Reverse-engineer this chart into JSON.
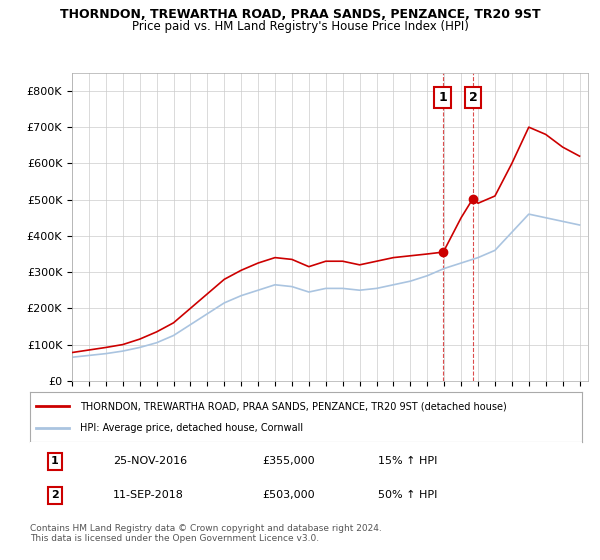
{
  "title1": "THORNDON, TREWARTHA ROAD, PRAA SANDS, PENZANCE, TR20 9ST",
  "title2": "Price paid vs. HM Land Registry's House Price Index (HPI)",
  "ylabel": "",
  "ylim": [
    0,
    850000
  ],
  "yticks": [
    0,
    100000,
    200000,
    300000,
    400000,
    500000,
    600000,
    700000,
    800000
  ],
  "ytick_labels": [
    "£0",
    "£100K",
    "£200K",
    "£300K",
    "£400K",
    "£500K",
    "£600K",
    "£700K",
    "£800K"
  ],
  "hpi_color": "#aac4e0",
  "price_color": "#cc0000",
  "marker_color": "#cc0000",
  "sale1_year": 2016.9,
  "sale1_value": 355000,
  "sale1_label": "1",
  "sale2_year": 2018.7,
  "sale2_value": 503000,
  "sale2_label": "2",
  "legend_line1": "THORNDON, TREWARTHA ROAD, PRAA SANDS, PENZANCE, TR20 9ST (detached house)",
  "legend_line2": "HPI: Average price, detached house, Cornwall",
  "table_row1": [
    "1",
    "25-NOV-2016",
    "£355,000",
    "15% ↑ HPI"
  ],
  "table_row2": [
    "2",
    "11-SEP-2018",
    "£503,000",
    "50% ↑ HPI"
  ],
  "footer": "Contains HM Land Registry data © Crown copyright and database right 2024.\nThis data is licensed under the Open Government Licence v3.0.",
  "background_color": "#ffffff",
  "grid_color": "#cccccc"
}
